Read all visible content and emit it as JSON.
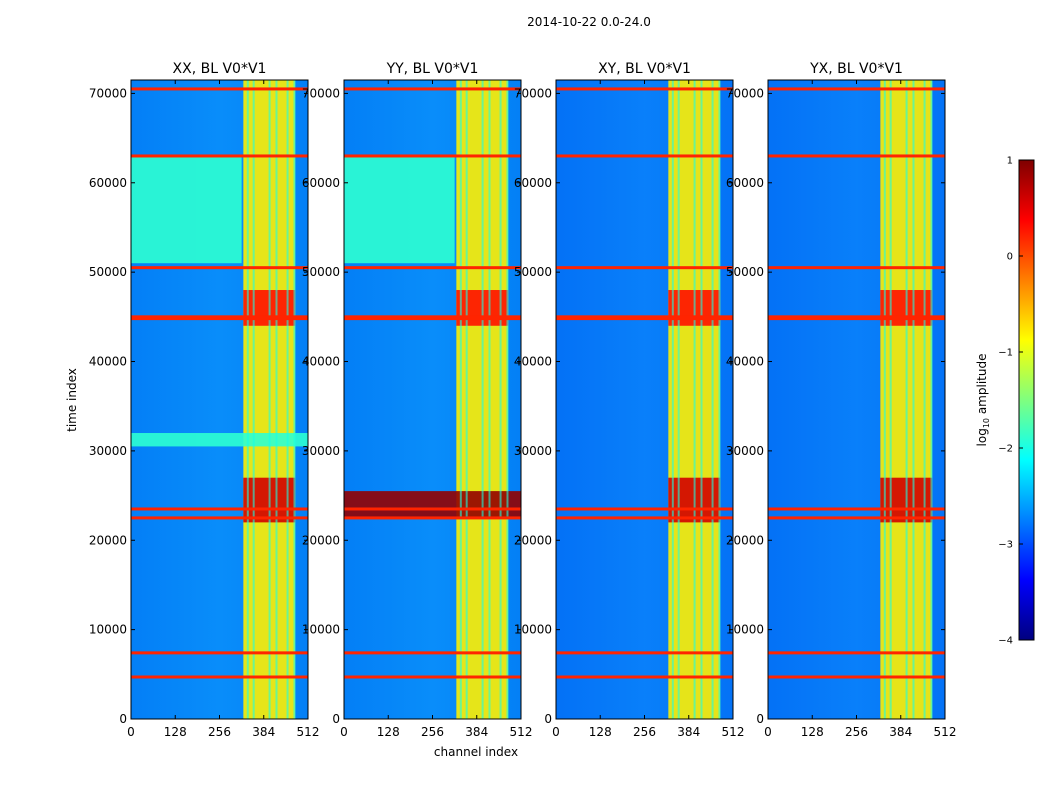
{
  "figure": {
    "suptitle": "2014-10-22 0.0-24.0",
    "xlabel": "channel index",
    "ylabel": "time index"
  },
  "colorbar": {
    "label": "log10 amplitude",
    "label_main": "log",
    "label_sub": "10",
    "label_rest": " amplitude",
    "range": [
      -4,
      1
    ],
    "ticks": [
      1,
      0,
      -1,
      -2,
      -3,
      -4
    ],
    "tick_labels": [
      "1",
      "0",
      "−1",
      "−2",
      "−3",
      "−4"
    ],
    "colormap": "jet",
    "colors": [
      "#00007f",
      "#0000ff",
      "#007fff",
      "#00ffff",
      "#7fff7f",
      "#ffff00",
      "#ff7f00",
      "#ff0000",
      "#7f0000"
    ]
  },
  "chart_data": [
    {
      "type": "heatmap",
      "title": "XX, BL V0*V1",
      "xlabel": "channel index",
      "ylabel": "time index",
      "xlim": [
        0,
        512
      ],
      "ylim": [
        0,
        71500
      ],
      "xticks": [
        0,
        128,
        256,
        384,
        512
      ],
      "yticks": [
        0,
        10000,
        20000,
        30000,
        40000,
        50000,
        60000,
        70000
      ],
      "background_log10": -2.6,
      "bright_bands": [
        {
          "channels": [
            325,
            475
          ],
          "log10_amplitude": -0.8
        },
        {
          "time_range": [
            22000,
            27000
          ],
          "channels": [
            325,
            475
          ],
          "log10_amplitude": 0.6
        },
        {
          "time_range": [
            44000,
            48000
          ],
          "channels": [
            325,
            475
          ],
          "log10_amplitude": 0.3
        },
        {
          "time_range": [
            51000,
            63000
          ],
          "channels": [
            0,
            320
          ],
          "log10_amplitude": -1.9
        },
        {
          "time_range": [
            30500,
            32000
          ],
          "channels": [
            0,
            512
          ],
          "log10_amplitude": -1.9
        }
      ],
      "rfi_time_rows": [
        4700,
        7400,
        22500,
        23500,
        44800,
        45000,
        50500,
        63000,
        70500
      ]
    },
    {
      "type": "heatmap",
      "title": "YY, BL V0*V1",
      "xlabel": "channel index",
      "ylabel": "time index",
      "xlim": [
        0,
        512
      ],
      "ylim": [
        0,
        71500
      ],
      "xticks": [
        0,
        128,
        256,
        384,
        512
      ],
      "yticks": [
        0,
        10000,
        20000,
        30000,
        40000,
        50000,
        60000,
        70000
      ],
      "background_log10": -2.6,
      "bright_bands": [
        {
          "channels": [
            325,
            475
          ],
          "log10_amplitude": -0.8
        },
        {
          "time_range": [
            22500,
            25500
          ],
          "channels": [
            0,
            512
          ],
          "log10_amplitude": 0.9
        },
        {
          "time_range": [
            44000,
            48000
          ],
          "channels": [
            325,
            475
          ],
          "log10_amplitude": 0.3
        },
        {
          "time_range": [
            51000,
            63000
          ],
          "channels": [
            0,
            320
          ],
          "log10_amplitude": -1.9
        }
      ],
      "rfi_time_rows": [
        4700,
        7400,
        22500,
        23500,
        44800,
        45000,
        50500,
        63000,
        70500
      ]
    },
    {
      "type": "heatmap",
      "title": "XY, BL V0*V1",
      "xlabel": "channel index",
      "ylabel": "time index",
      "xlim": [
        0,
        512
      ],
      "ylim": [
        0,
        71500
      ],
      "xticks": [
        0,
        128,
        256,
        384,
        512
      ],
      "yticks": [
        0,
        10000,
        20000,
        30000,
        40000,
        50000,
        60000,
        70000
      ],
      "background_log10": -2.7,
      "bright_bands": [
        {
          "channels": [
            325,
            475
          ],
          "log10_amplitude": -0.8
        },
        {
          "time_range": [
            22000,
            27000
          ],
          "channels": [
            325,
            475
          ],
          "log10_amplitude": 0.6
        },
        {
          "time_range": [
            44000,
            48000
          ],
          "channels": [
            325,
            475
          ],
          "log10_amplitude": 0.3
        }
      ],
      "rfi_time_rows": [
        4700,
        7400,
        22500,
        23500,
        44800,
        45000,
        50500,
        63000,
        70500
      ]
    },
    {
      "type": "heatmap",
      "title": "YX, BL V0*V1",
      "xlabel": "channel index",
      "ylabel": "time index",
      "xlim": [
        0,
        512
      ],
      "ylim": [
        0,
        71500
      ],
      "xticks": [
        0,
        128,
        256,
        384,
        512
      ],
      "yticks": [
        0,
        10000,
        20000,
        30000,
        40000,
        50000,
        60000,
        70000
      ],
      "background_log10": -2.7,
      "bright_bands": [
        {
          "channels": [
            325,
            475
          ],
          "log10_amplitude": -0.8
        },
        {
          "time_range": [
            22000,
            27000
          ],
          "channels": [
            325,
            475
          ],
          "log10_amplitude": 0.6
        },
        {
          "time_range": [
            44000,
            48000
          ],
          "channels": [
            325,
            475
          ],
          "log10_amplitude": 0.3
        }
      ],
      "rfi_time_rows": [
        4700,
        7400,
        22500,
        23500,
        44800,
        45000,
        50500,
        63000,
        70500
      ]
    }
  ]
}
